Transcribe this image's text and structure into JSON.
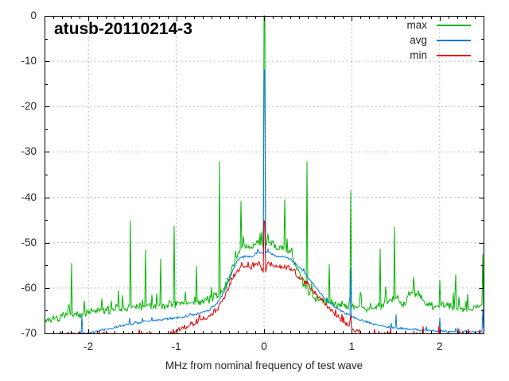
{
  "chart_data": {
    "type": "line",
    "title": "atusb-20110214-3",
    "xlabel": "MHz from nominal frequency of test wave",
    "ylabel": "",
    "xlim": [
      -2.5,
      2.5
    ],
    "ylim": [
      -70,
      0
    ],
    "xticks": [
      -2,
      -1,
      0,
      1,
      2
    ],
    "yticks": [
      0,
      -10,
      -20,
      -30,
      -40,
      -50,
      -60,
      -70
    ],
    "x_minor_step": 0.1,
    "y_minor_step": 5,
    "grid": true,
    "grid_style": "dotted-gray-at-major-ticks",
    "legend_position": "top-right-inside",
    "background": "#ffffff",
    "axis_color": "#000000",
    "grid_color": "#b0b0b0",
    "series": [
      {
        "name": "max",
        "color": "#00b400",
        "noise_db": 1.1,
        "hair_prob": 0.06,
        "hair_extra_db": 3.2,
        "seed": 7,
        "envelope": [
          [
            -2.5,
            -67.2
          ],
          [
            -2.35,
            -66.6
          ],
          [
            -2.2,
            -66.1
          ],
          [
            -2.05,
            -65.6
          ],
          [
            -1.9,
            -65.1
          ],
          [
            -1.75,
            -64.8
          ],
          [
            -1.6,
            -64.5
          ],
          [
            -1.45,
            -64.2
          ],
          [
            -1.3,
            -64.0
          ],
          [
            -1.15,
            -63.9
          ],
          [
            -1.0,
            -63.7
          ],
          [
            -0.85,
            -63.3
          ],
          [
            -0.72,
            -63.0
          ],
          [
            -0.62,
            -62.5
          ],
          [
            -0.52,
            -61.6
          ],
          [
            -0.45,
            -60.2
          ],
          [
            -0.4,
            -58.0
          ],
          [
            -0.35,
            -55.0
          ],
          [
            -0.3,
            -52.0
          ],
          [
            -0.25,
            -51.3
          ],
          [
            -0.2,
            -50.9
          ],
          [
            -0.15,
            -51.1
          ],
          [
            -0.1,
            -50.2
          ],
          [
            -0.06,
            -49.7
          ],
          [
            -0.02,
            -50.4
          ],
          [
            0.02,
            -50.4
          ],
          [
            0.06,
            -49.8
          ],
          [
            0.1,
            -50.3
          ],
          [
            0.15,
            -51.2
          ],
          [
            0.2,
            -51.0
          ],
          [
            0.25,
            -51.5
          ],
          [
            0.3,
            -52.2
          ],
          [
            0.35,
            -54.5
          ],
          [
            0.4,
            -57.0
          ],
          [
            0.45,
            -59.2
          ],
          [
            0.5,
            -60.9
          ],
          [
            0.6,
            -62.3
          ],
          [
            0.7,
            -63.0
          ],
          [
            0.85,
            -63.5
          ],
          [
            1.0,
            -63.9
          ],
          [
            1.15,
            -64.3
          ],
          [
            1.3,
            -64.1
          ],
          [
            1.42,
            -62.8
          ],
          [
            1.5,
            -61.9
          ],
          [
            1.58,
            -63.4
          ],
          [
            1.7,
            -61.2
          ],
          [
            1.78,
            -62.2
          ],
          [
            1.85,
            -63.6
          ],
          [
            1.95,
            -64.1
          ],
          [
            2.05,
            -63.8
          ],
          [
            2.15,
            -64.0
          ],
          [
            2.25,
            -64.4
          ],
          [
            2.35,
            -64.3
          ],
          [
            2.5,
            -64.1
          ]
        ],
        "spikes": [
          [
            -2.19,
            -54.5,
            1
          ],
          [
            -2.05,
            -62.8,
            1
          ],
          [
            -1.85,
            -62.3,
            1
          ],
          [
            -1.66,
            -60.5,
            1
          ],
          [
            -1.52,
            -45.1,
            1
          ],
          [
            -1.35,
            -51.6,
            1
          ],
          [
            -1.18,
            -53.5,
            1
          ],
          [
            -1.02,
            -46.3,
            1
          ],
          [
            -0.9,
            -60.8,
            1
          ],
          [
            -0.77,
            -55.1,
            1
          ],
          [
            -0.6,
            -59.8,
            1
          ],
          [
            -0.51,
            -32.1,
            1
          ],
          [
            -0.26,
            -40.8,
            1
          ],
          [
            -0.045,
            -47.9,
            1
          ],
          [
            0.0,
            0.0,
            2
          ],
          [
            0.045,
            -48.0,
            1
          ],
          [
            0.24,
            -40.5,
            1
          ],
          [
            0.49,
            -32.1,
            1
          ],
          [
            0.74,
            -54.7,
            1
          ],
          [
            0.99,
            -38.5,
            1
          ],
          [
            1.1,
            -60.9,
            1
          ],
          [
            1.32,
            -51.3,
            1
          ],
          [
            1.49,
            -46.5,
            1
          ],
          [
            1.7,
            -57.6,
            1
          ],
          [
            2.0,
            -58.2,
            1
          ],
          [
            2.18,
            -57.0,
            1
          ],
          [
            2.49,
            -52.5,
            1
          ]
        ]
      },
      {
        "name": "avg",
        "color": "#0878dc",
        "noise_db": 0.3,
        "hair_prob": 0.05,
        "hair_extra_db": 1.0,
        "seed": 11,
        "envelope": [
          [
            -2.5,
            -70.4
          ],
          [
            -2.2,
            -70.2
          ],
          [
            -2.0,
            -69.9
          ],
          [
            -1.8,
            -69.1
          ],
          [
            -1.6,
            -68.2
          ],
          [
            -1.4,
            -67.5
          ],
          [
            -1.2,
            -67.0
          ],
          [
            -1.0,
            -66.6
          ],
          [
            -0.85,
            -66.1
          ],
          [
            -0.72,
            -65.5
          ],
          [
            -0.62,
            -64.8
          ],
          [
            -0.55,
            -63.7
          ],
          [
            -0.5,
            -62.4
          ],
          [
            -0.45,
            -60.6
          ],
          [
            -0.4,
            -58.3
          ],
          [
            -0.35,
            -55.8
          ],
          [
            -0.3,
            -53.8
          ],
          [
            -0.25,
            -53.2
          ],
          [
            -0.2,
            -52.9
          ],
          [
            -0.15,
            -53.1
          ],
          [
            -0.1,
            -52.5
          ],
          [
            -0.06,
            -52.1
          ],
          [
            0.0,
            -52.4
          ],
          [
            0.06,
            -52.2
          ],
          [
            0.1,
            -52.6
          ],
          [
            0.15,
            -53.2
          ],
          [
            0.2,
            -53.1
          ],
          [
            0.25,
            -53.3
          ],
          [
            0.3,
            -53.6
          ],
          [
            0.35,
            -54.4
          ],
          [
            0.4,
            -55.4
          ],
          [
            0.45,
            -56.4
          ],
          [
            0.5,
            -57.6
          ],
          [
            0.56,
            -59.2
          ],
          [
            0.63,
            -61.0
          ],
          [
            0.7,
            -62.4
          ],
          [
            0.78,
            -63.8
          ],
          [
            0.85,
            -64.7
          ],
          [
            0.95,
            -65.8
          ],
          [
            1.05,
            -66.7
          ],
          [
            1.15,
            -67.4
          ],
          [
            1.3,
            -68.2
          ],
          [
            1.45,
            -68.7
          ],
          [
            1.6,
            -69.0
          ],
          [
            1.8,
            -69.3
          ],
          [
            2.0,
            -69.5
          ],
          [
            2.2,
            -69.6
          ],
          [
            2.5,
            -69.7
          ]
        ],
        "spikes": [
          [
            -2.07,
            -65.9,
            1
          ],
          [
            -1.53,
            -66.6,
            1
          ],
          [
            0.0,
            -11.9,
            2
          ],
          [
            0.99,
            -55.8,
            1
          ],
          [
            1.5,
            -65.8,
            1
          ],
          [
            2.0,
            -66.6,
            1
          ],
          [
            2.49,
            -64.5,
            1
          ]
        ]
      },
      {
        "name": "min",
        "color": "#e00000",
        "noise_db": 0.8,
        "hair_prob": 0.04,
        "hair_extra_db": 1.6,
        "seed": 13,
        "envelope": [
          [
            -1.08,
            -70.4
          ],
          [
            -1.0,
            -69.3
          ],
          [
            -0.93,
            -68.9
          ],
          [
            -0.85,
            -68.2
          ],
          [
            -0.78,
            -67.3
          ],
          [
            -0.7,
            -66.9
          ],
          [
            -0.64,
            -66.5
          ],
          [
            -0.58,
            -65.6
          ],
          [
            -0.52,
            -64.3
          ],
          [
            -0.47,
            -62.8
          ],
          [
            -0.42,
            -60.8
          ],
          [
            -0.38,
            -58.8
          ],
          [
            -0.34,
            -57.2
          ],
          [
            -0.3,
            -56.2
          ],
          [
            -0.25,
            -55.5
          ],
          [
            -0.2,
            -55.2
          ],
          [
            -0.15,
            -55.4
          ],
          [
            -0.1,
            -54.8
          ],
          [
            -0.05,
            -54.5
          ],
          [
            -0.02,
            -55.7
          ],
          [
            0.0,
            -57.7
          ],
          [
            0.02,
            -55.7
          ],
          [
            0.05,
            -54.5
          ],
          [
            0.1,
            -54.9
          ],
          [
            0.15,
            -55.5
          ],
          [
            0.2,
            -55.3
          ],
          [
            0.25,
            -55.6
          ],
          [
            0.3,
            -56.0
          ],
          [
            0.35,
            -56.6
          ],
          [
            0.4,
            -57.4
          ],
          [
            0.45,
            -58.3
          ],
          [
            0.5,
            -59.3
          ],
          [
            0.56,
            -60.6
          ],
          [
            0.63,
            -62.2
          ],
          [
            0.7,
            -63.6
          ],
          [
            0.78,
            -65.3
          ],
          [
            0.85,
            -66.5
          ],
          [
            0.93,
            -67.8
          ],
          [
            1.0,
            -68.8
          ],
          [
            1.08,
            -69.9
          ],
          [
            1.15,
            -70.5
          ]
        ],
        "spikes": [
          [
            0.0,
            -45.2,
            2
          ],
          [
            0.99,
            -65.9,
            1
          ],
          [
            1.99,
            -68.3,
            1
          ]
        ]
      }
    ]
  }
}
